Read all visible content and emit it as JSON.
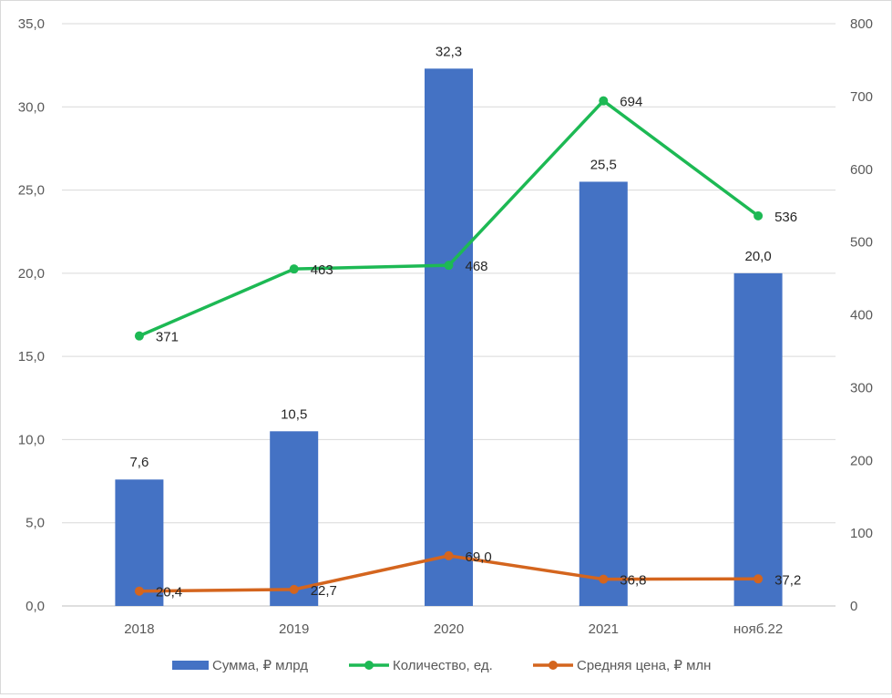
{
  "chart_data": {
    "type": "bar",
    "categories": [
      "2018",
      "2019",
      "2020",
      "2021",
      "нояб.22"
    ],
    "y_left": {
      "min": 0,
      "max": 35,
      "step": 5,
      "tick_labels": [
        "0,0",
        "5,0",
        "10,0",
        "15,0",
        "20,0",
        "25,0",
        "30,0",
        "35,0"
      ]
    },
    "y_right": {
      "min": 0,
      "max": 800,
      "step": 100,
      "tick_labels": [
        "0",
        "100",
        "200",
        "300",
        "400",
        "500",
        "600",
        "700",
        "800"
      ]
    },
    "grid": true,
    "legend_position": "bottom",
    "series": [
      {
        "name": "Сумма, ₽ млрд",
        "type": "bar",
        "axis": "left",
        "color": "#4472C4",
        "values": [
          7.6,
          10.5,
          32.3,
          25.5,
          20.0
        ],
        "labels": [
          "7,6",
          "10,5",
          "32,3",
          "25,5",
          "20,0"
        ]
      },
      {
        "name": "Количество, ед.",
        "type": "line",
        "axis": "right",
        "color": "#1DB954",
        "values": [
          371,
          463,
          468,
          694,
          536
        ],
        "labels": [
          "371",
          "463",
          "468",
          "694",
          "536"
        ]
      },
      {
        "name": "Средняя цена, ₽ млн",
        "type": "line",
        "axis": "right",
        "color": "#D4651E",
        "values": [
          20.4,
          22.7,
          69.0,
          36.8,
          37.2
        ],
        "labels": [
          "20,4",
          "22,7",
          "69,0",
          "36,8",
          "37,2"
        ]
      }
    ]
  }
}
